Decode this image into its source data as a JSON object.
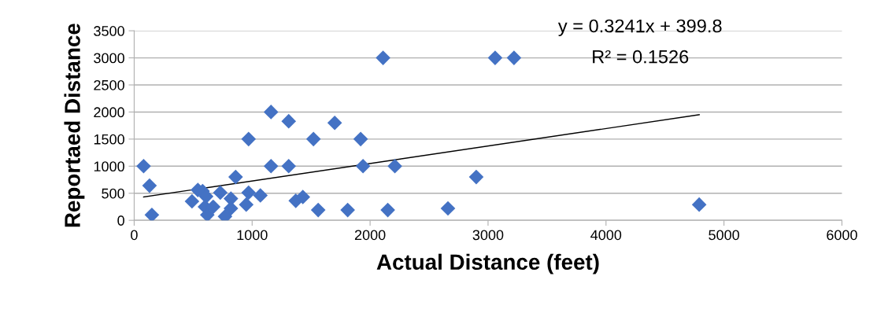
{
  "chart_data": {
    "type": "scatter",
    "xlabel": "Actual Distance (feet)",
    "ylabel": "Reportaed Distance",
    "xlim": [
      0,
      6000
    ],
    "xticks": [
      0,
      1000,
      2000,
      3000,
      4000,
      5000,
      6000
    ],
    "ylim": [
      0,
      3500
    ],
    "yticks": [
      0,
      500,
      1000,
      1500,
      2000,
      2500,
      3000,
      3500
    ],
    "grid": "y",
    "legend": false,
    "series": [
      {
        "marker": "diamond",
        "color": "#4472c4",
        "x": [
          80,
          130,
          150,
          490,
          540,
          580,
          610,
          600,
          620,
          670,
          730,
          770,
          820,
          820,
          860,
          950,
          970,
          970,
          1070,
          1160,
          1160,
          1310,
          1310,
          1370,
          1430,
          1520,
          1560,
          1700,
          1810,
          1920,
          1940,
          2110,
          2150,
          2210,
          2660,
          2900,
          3060,
          3220,
          4790
        ],
        "values": [
          1000,
          640,
          100,
          350,
          560,
          540,
          440,
          250,
          100,
          250,
          510,
          70,
          400,
          220,
          800,
          290,
          1500,
          510,
          460,
          1000,
          2000,
          1000,
          1830,
          360,
          430,
          1500,
          190,
          1800,
          190,
          1500,
          1000,
          3000,
          190,
          1000,
          220,
          800,
          3000,
          3000,
          290
        ]
      },
      {
        "type": "line",
        "marker": "none",
        "color": "#000000",
        "x": [
          80,
          4790
        ],
        "values": [
          430,
          1950
        ]
      }
    ],
    "annotations": [
      "y = 0.3241x + 399.8",
      "R² = 0.1526"
    ]
  }
}
